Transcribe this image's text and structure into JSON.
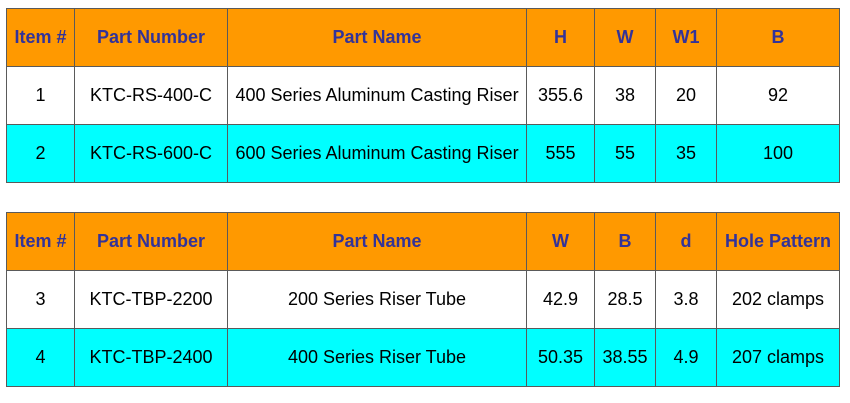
{
  "tables": [
    {
      "headers": [
        "Item #",
        "Part Number",
        "Part Name",
        "H",
        "W",
        "W1",
        "B"
      ],
      "rows": [
        [
          "1",
          "KTC-RS-400-C",
          "400 Series Aluminum Casting Riser",
          "355.6",
          "38",
          "20",
          "92"
        ],
        [
          "2",
          "KTC-RS-600-C",
          "600 Series Aluminum Casting Riser",
          "555",
          "55",
          "35",
          "100"
        ]
      ]
    },
    {
      "headers": [
        "Item #",
        "Part Number",
        "Part Name",
        "W",
        "B",
        "d",
        "Hole Pattern"
      ],
      "rows": [
        [
          "3",
          "KTC-TBP-2200",
          "200 Series Riser Tube",
          "42.9",
          "28.5",
          "3.8",
          "202 clamps"
        ],
        [
          "4",
          "KTC-TBP-2400",
          "400 Series Riser Tube",
          "50.35",
          "38.55",
          "4.9",
          "207 clamps"
        ]
      ]
    }
  ],
  "colors": {
    "header_bg": "#ff9900",
    "header_text": "#333399",
    "row_even_bg": "#ffffff",
    "row_odd_bg": "#00ffff",
    "border": "#5a5a5a"
  }
}
